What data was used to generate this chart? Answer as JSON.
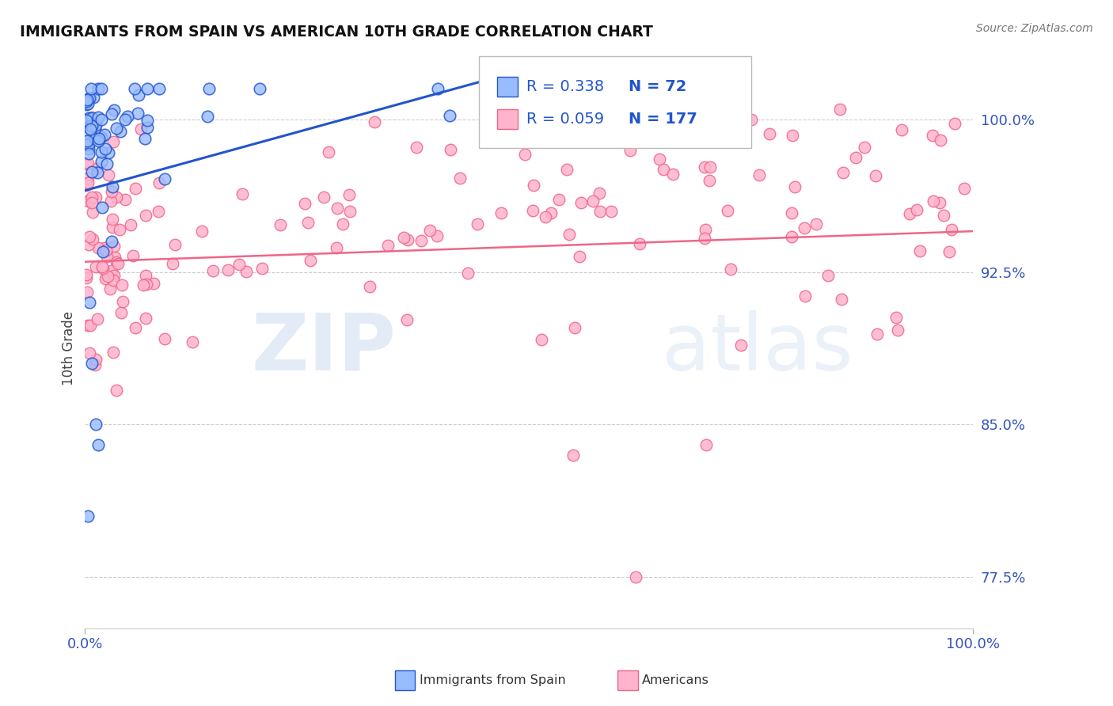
{
  "title": "IMMIGRANTS FROM SPAIN VS AMERICAN 10TH GRADE CORRELATION CHART",
  "source_text": "Source: ZipAtlas.com",
  "ylabel": "10th Grade",
  "xlim": [
    0.0,
    100.0
  ],
  "ylim": [
    75.0,
    102.5
  ],
  "yticks": [
    77.5,
    85.0,
    92.5,
    100.0
  ],
  "ytick_labels": [
    "77.5%",
    "85.0%",
    "92.5%",
    "100.0%"
  ],
  "blue_color": "#99BBFF",
  "pink_color": "#FFB3CC",
  "trend_blue": "#2255CC",
  "trend_pink": "#EE6688",
  "legend_R_blue": "0.338",
  "legend_N_blue": "72",
  "legend_R_pink": "0.059",
  "legend_N_pink": "177",
  "legend_label_blue": "Immigrants from Spain",
  "legend_label_pink": "Americans",
  "watermark_zip": "ZIP",
  "watermark_atlas": "atlas",
  "background_color": "#FFFFFF"
}
